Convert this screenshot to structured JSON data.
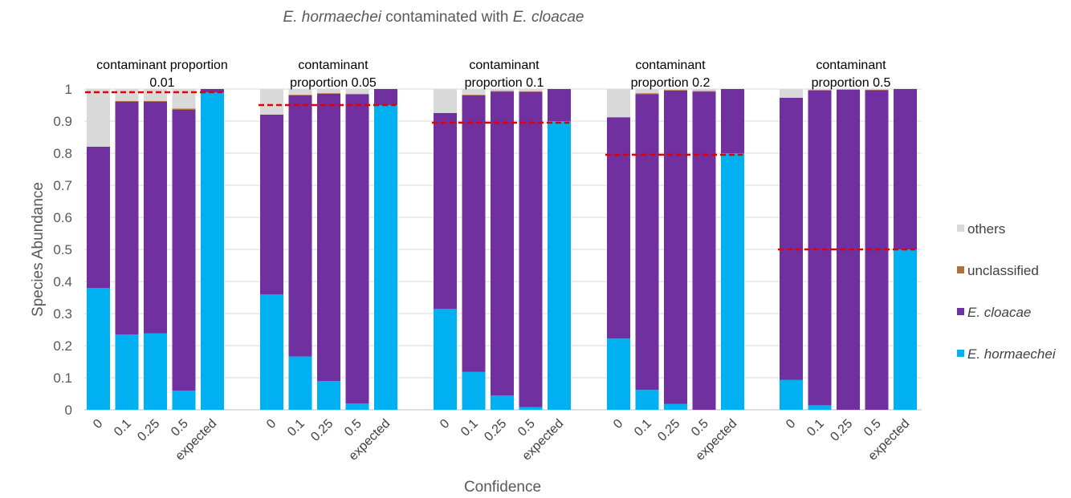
{
  "chart_data": {
    "type": "bar",
    "stacked": true,
    "title_parts": [
      {
        "text": "E. hormaechei",
        "italic": true
      },
      {
        "text": " contaminated with ",
        "italic": false
      },
      {
        "text": "E. cloacae",
        "italic": true
      }
    ],
    "xlabel": "Confidence",
    "ylabel": "Species Abundance",
    "ylim": [
      0,
      1
    ],
    "yticks": [
      "0",
      "0.1",
      "0.2",
      "0.3",
      "0.4",
      "0.5",
      "0.6",
      "0.7",
      "0.8",
      "0.9",
      "1"
    ],
    "grid": true,
    "legend_position": "right",
    "categories": [
      "0",
      "0.1",
      "0.25",
      "0.5",
      "expected"
    ],
    "series": [
      {
        "key": "hormaechei",
        "name": "E. hormaechei",
        "italic": true,
        "color": "#00B0F0"
      },
      {
        "key": "cloacae",
        "name": "E. cloacae",
        "italic": true,
        "color": "#7030A0"
      },
      {
        "key": "unclassified",
        "name": "unclassified",
        "italic": false,
        "color": "#B0703C"
      },
      {
        "key": "others",
        "name": "others",
        "italic": false,
        "color": "#D9D9D9"
      }
    ],
    "legend_order": [
      "others",
      "unclassified",
      "cloacae",
      "hormaechei"
    ],
    "expected_line_color": "#E00000",
    "panels": [
      {
        "title_lines": [
          "contaminant proportion",
          "0.01"
        ],
        "expected_line": 0.99,
        "values": {
          "hormaechei": [
            0.38,
            0.235,
            0.238,
            0.06,
            0.99
          ],
          "cloacae": [
            0.44,
            0.725,
            0.722,
            0.875,
            0.01
          ],
          "unclassified": [
            0.0,
            0.003,
            0.003,
            0.004,
            0.0
          ],
          "others": [
            0.18,
            0.037,
            0.037,
            0.061,
            0.0
          ]
        }
      },
      {
        "title_lines": [
          "contaminant",
          "proportion 0.05"
        ],
        "expected_line": 0.95,
        "values": {
          "hormaechei": [
            0.36,
            0.166,
            0.09,
            0.02,
            0.95
          ],
          "cloacae": [
            0.56,
            0.814,
            0.895,
            0.963,
            0.05
          ],
          "unclassified": [
            0.0,
            0.002,
            0.002,
            0.002,
            0.0
          ],
          "others": [
            0.08,
            0.018,
            0.013,
            0.015,
            0.0
          ]
        }
      },
      {
        "title_lines": [
          "contaminant",
          "proportion 0.1"
        ],
        "expected_line": 0.895,
        "values": {
          "hormaechei": [
            0.315,
            0.118,
            0.045,
            0.008,
            0.9
          ],
          "cloacae": [
            0.61,
            0.862,
            0.947,
            0.983,
            0.1
          ],
          "unclassified": [
            0.0,
            0.002,
            0.002,
            0.002,
            0.0
          ],
          "others": [
            0.075,
            0.018,
            0.006,
            0.007,
            0.0
          ]
        }
      },
      {
        "title_lines": [
          "contaminant",
          "proportion 0.2"
        ],
        "expected_line": 0.795,
        "values": {
          "hormaechei": [
            0.222,
            0.062,
            0.018,
            0.0,
            0.8
          ],
          "cloacae": [
            0.69,
            0.922,
            0.977,
            0.992,
            0.2
          ],
          "unclassified": [
            0.0,
            0.003,
            0.002,
            0.002,
            0.0
          ],
          "others": [
            0.088,
            0.013,
            0.003,
            0.006,
            0.0
          ]
        }
      },
      {
        "title_lines": [
          "contaminant",
          "proportion 0.5"
        ],
        "expected_line": 0.5,
        "values": {
          "hormaechei": [
            0.093,
            0.014,
            0.0,
            0.0,
            0.5
          ],
          "cloacae": [
            0.88,
            0.982,
            0.998,
            0.996,
            0.5
          ],
          "unclassified": [
            0.0,
            0.001,
            0.001,
            0.002,
            0.0
          ],
          "others": [
            0.027,
            0.003,
            0.001,
            0.002,
            0.0
          ]
        }
      }
    ]
  }
}
